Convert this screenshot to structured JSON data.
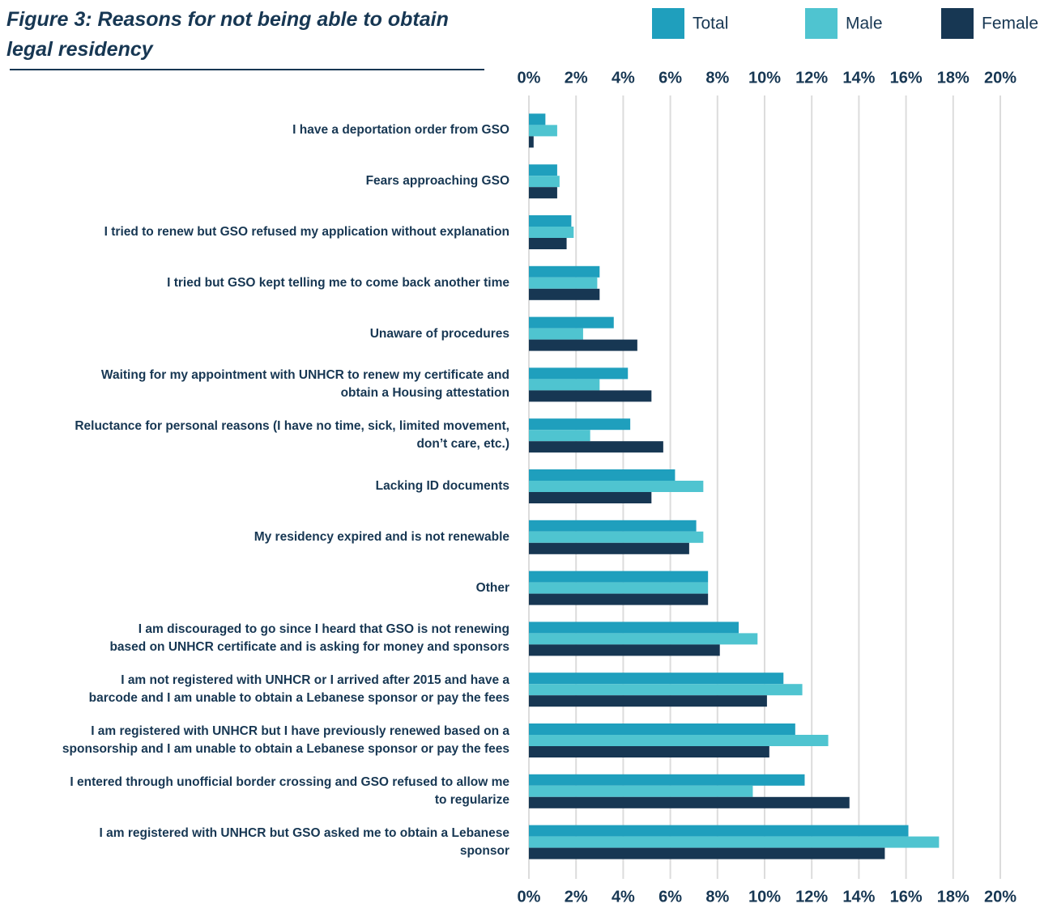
{
  "chart_data": {
    "type": "hbar",
    "title": "Figure 3:  Reasons for not being able to obtain\nlegal residency",
    "categories": [
      "I have a deportation order from GSO",
      "Fears approaching GSO",
      "I tried to renew but GSO refused my application without explanation",
      "I tried but GSO kept telling me to come back another time",
      "Unaware of procedures",
      "Waiting for my appointment with UNHCR to renew my certificate and\nobtain a Housing attestation",
      "Reluctance for personal reasons (I have no time, sick, limited movement,\ndon’t care, etc.)",
      "Lacking ID documents",
      "My residency expired and is not renewable",
      "Other",
      "I am discouraged to go since I heard that GSO is not renewing\nbased on UNHCR certificate and is asking for money and sponsors",
      "I am not registered with UNHCR or I arrived after 2015 and have a\nbarcode and I am unable to obtain a Lebanese sponsor or pay the fees",
      "I am registered with UNHCR but I have previously renewed based on a\nsponsorship and I am unable to obtain a Lebanese sponsor or pay the fees",
      "I entered through unofficial border crossing and GSO refused to allow me\nto regularize",
      "I am registered with UNHCR but GSO asked me to obtain a Lebanese\nsponsor"
    ],
    "series": [
      {
        "name": "Total",
        "color": "#1f9fbd",
        "values": [
          0.7,
          1.2,
          1.8,
          3.0,
          3.6,
          4.2,
          4.3,
          6.2,
          7.1,
          7.6,
          8.9,
          10.8,
          11.3,
          11.7,
          16.1
        ]
      },
      {
        "name": "Male",
        "color": "#4fc4d0",
        "values": [
          1.2,
          1.3,
          1.9,
          2.9,
          2.3,
          3.0,
          2.6,
          7.4,
          7.4,
          7.6,
          9.7,
          11.6,
          12.7,
          9.5,
          17.4
        ]
      },
      {
        "name": "Female",
        "color": "#173753",
        "values": [
          0.2,
          1.2,
          1.6,
          3.0,
          4.6,
          5.2,
          5.7,
          5.2,
          6.8,
          7.6,
          8.1,
          10.1,
          10.2,
          13.6,
          15.1
        ]
      }
    ],
    "xlim": [
      0,
      20
    ],
    "xticks": [
      {
        "value": 0,
        "label": "0%"
      },
      {
        "value": 2,
        "label": "2%"
      },
      {
        "value": 4,
        "label": "4%"
      },
      {
        "value": 6,
        "label": "6%"
      },
      {
        "value": 8,
        "label": "8%"
      },
      {
        "value": 10,
        "label": "10%"
      },
      {
        "value": 12,
        "label": "12%"
      },
      {
        "value": 14,
        "label": "14%"
      },
      {
        "value": 16,
        "label": "16%"
      },
      {
        "value": 18,
        "label": "18%"
      },
      {
        "value": 20,
        "label": "20%"
      }
    ],
    "grid": true
  }
}
